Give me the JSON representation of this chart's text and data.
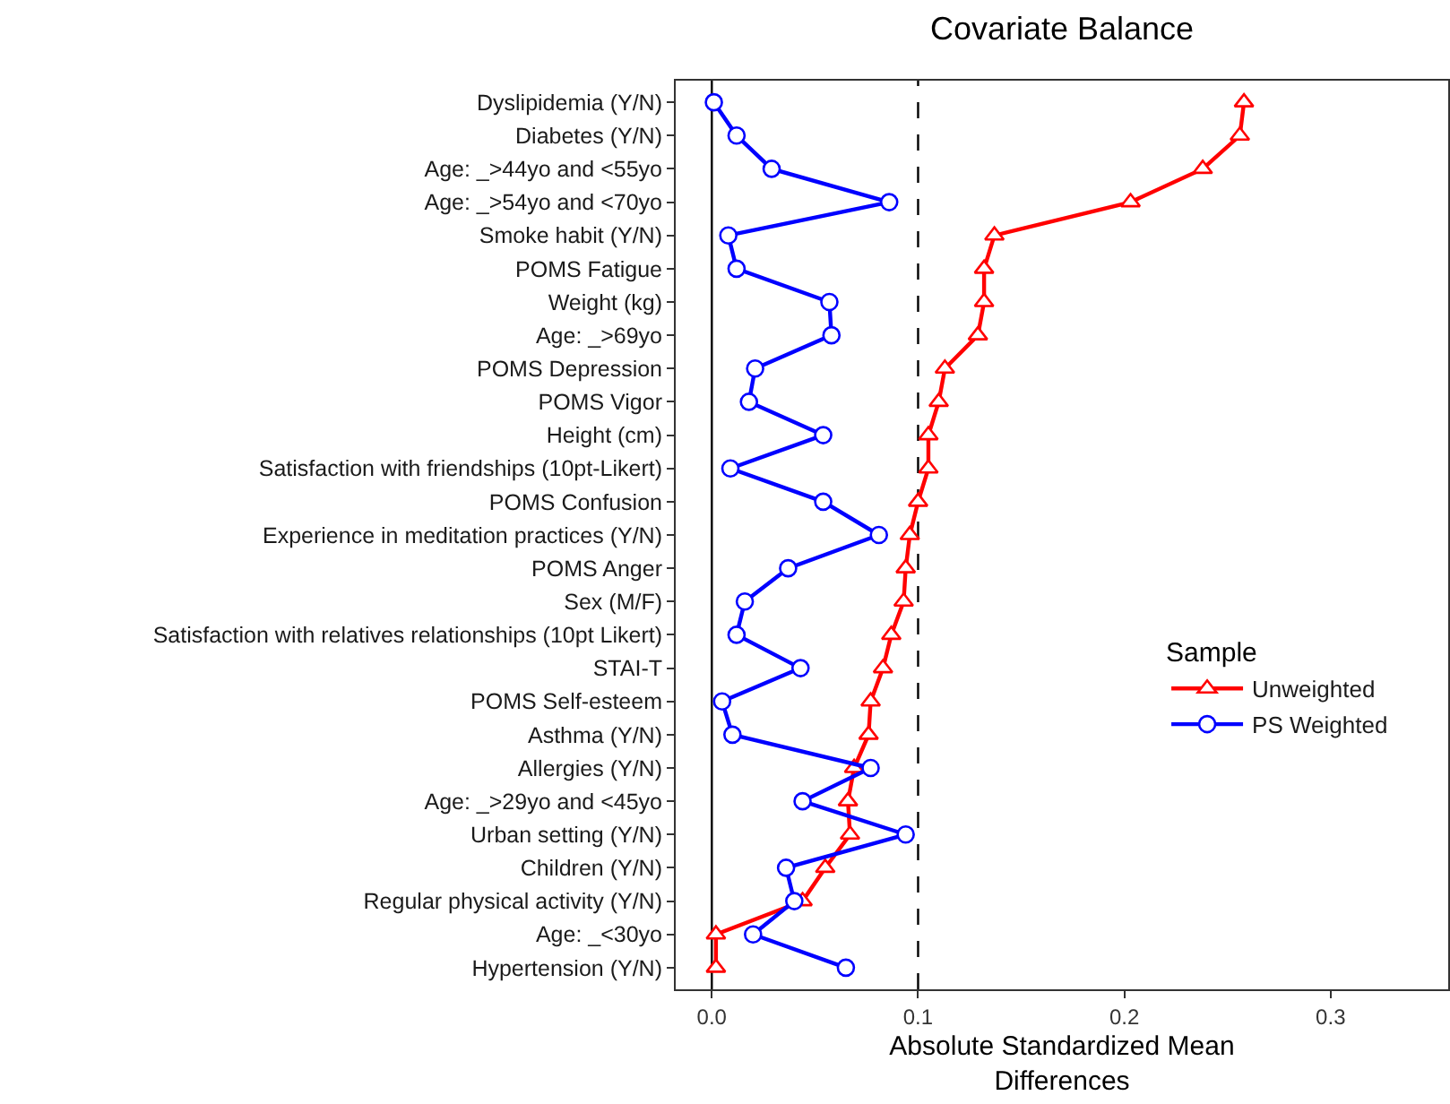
{
  "chart_data": {
    "type": "line",
    "orientation": "horizontal",
    "title": "Covariate Balance",
    "xlabel": "Absolute Standardized Mean\nDifferences",
    "legend_title": "Sample",
    "legend": "right",
    "grid": false,
    "categories": [
      "Dyslipidemia (Y/N)",
      "Diabetes (Y/N)",
      "Age: _>44yo and <55yo",
      "Age: _>54yo and <70yo",
      "Smoke habit (Y/N)",
      "POMS Fatigue",
      "Weight (kg)",
      "Age: _>69yo",
      "POMS Depression",
      "POMS Vigor",
      "Height (cm)",
      "Satisfaction with friendships (10pt-Likert)",
      "POMS Confusion",
      "Experience in meditation practices (Y/N)",
      "POMS Anger",
      "Sex (M/F)",
      "Satisfaction with relatives relationships (10pt Likert)",
      "STAI-T",
      "POMS Self-esteem",
      "Asthma (Y/N)",
      "Allergies (Y/N)",
      "Age: _>29yo and <45yo",
      "Urban setting (Y/N)",
      "Children (Y/N)",
      "Regular physical activity (Y/N)",
      "Age: _<30yo",
      "Hypertension (Y/N)"
    ],
    "series": [
      {
        "name": "Unweighted",
        "color": "#ff0000",
        "marker": "triangle",
        "values": [
          0.258,
          0.256,
          0.238,
          0.203,
          0.137,
          0.132,
          0.132,
          0.129,
          0.113,
          0.11,
          0.105,
          0.105,
          0.1,
          0.096,
          0.094,
          0.093,
          0.087,
          0.083,
          0.077,
          0.076,
          0.069,
          0.066,
          0.067,
          0.055,
          0.044,
          0.002,
          0.002
        ]
      },
      {
        "name": "PS Weighted",
        "color": "#0000ff",
        "marker": "circle",
        "values": [
          0.001,
          0.012,
          0.029,
          0.086,
          0.008,
          0.012,
          0.057,
          0.058,
          0.021,
          0.018,
          0.054,
          0.009,
          0.054,
          0.081,
          0.037,
          0.016,
          0.012,
          0.043,
          0.005,
          0.01,
          0.077,
          0.044,
          0.094,
          0.036,
          0.04,
          0.02,
          0.065
        ]
      }
    ],
    "xlim": [
      -0.0175,
      0.357
    ],
    "xticks": [
      {
        "value": 0,
        "label": "0.0"
      },
      {
        "value": 0.1,
        "label": "0.1"
      },
      {
        "value": 0.2,
        "label": "0.2"
      },
      {
        "value": 0.3,
        "label": "0.3"
      }
    ],
    "ref_lines": [
      {
        "axis": "x",
        "value": 0,
        "label": null,
        "color": "#000000",
        "line_style": "solid"
      },
      {
        "axis": "x",
        "value": 0.1,
        "label": null,
        "color": "#000000",
        "line_style": "dashed"
      }
    ]
  }
}
